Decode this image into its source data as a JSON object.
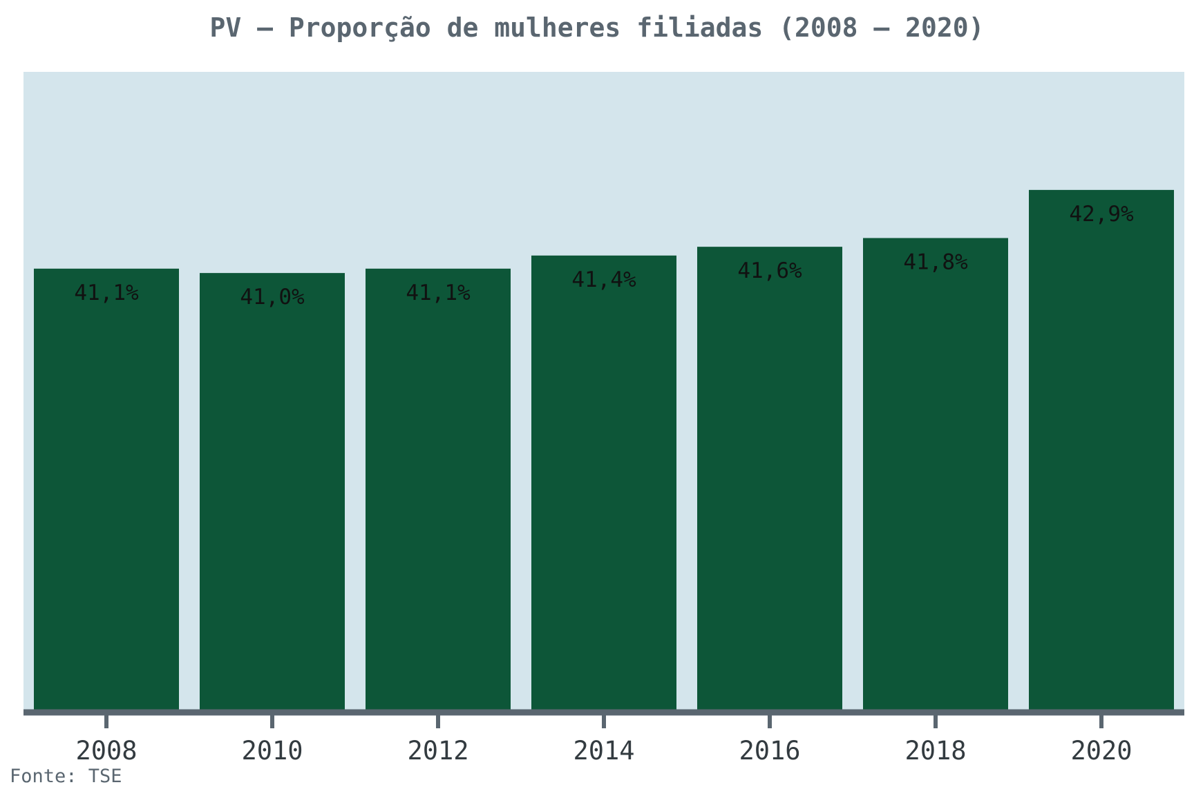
{
  "chart_data": {
    "type": "bar",
    "title": "PV – Proporção de mulheres filiadas (2008 – 2020)",
    "categories": [
      "2008",
      "2010",
      "2012",
      "2014",
      "2016",
      "2018",
      "2020"
    ],
    "values": [
      41.1,
      41.0,
      41.1,
      41.4,
      41.6,
      41.8,
      42.9
    ],
    "data_labels": [
      "41,1%",
      "41,0%",
      "41,1%",
      "41,4%",
      "41,6%",
      "41,8%",
      "42,9%"
    ],
    "xlabel": "",
    "ylabel": "",
    "ylim": [
      31.0,
      45.6
    ],
    "grid": false,
    "legend": "none",
    "source": "Fonte: TSE",
    "colors": {
      "bar": "#0d5638",
      "plot_background": "#d4e5ec",
      "axis": "#5a6670",
      "title": "#5a6670",
      "label": "#111111"
    }
  }
}
